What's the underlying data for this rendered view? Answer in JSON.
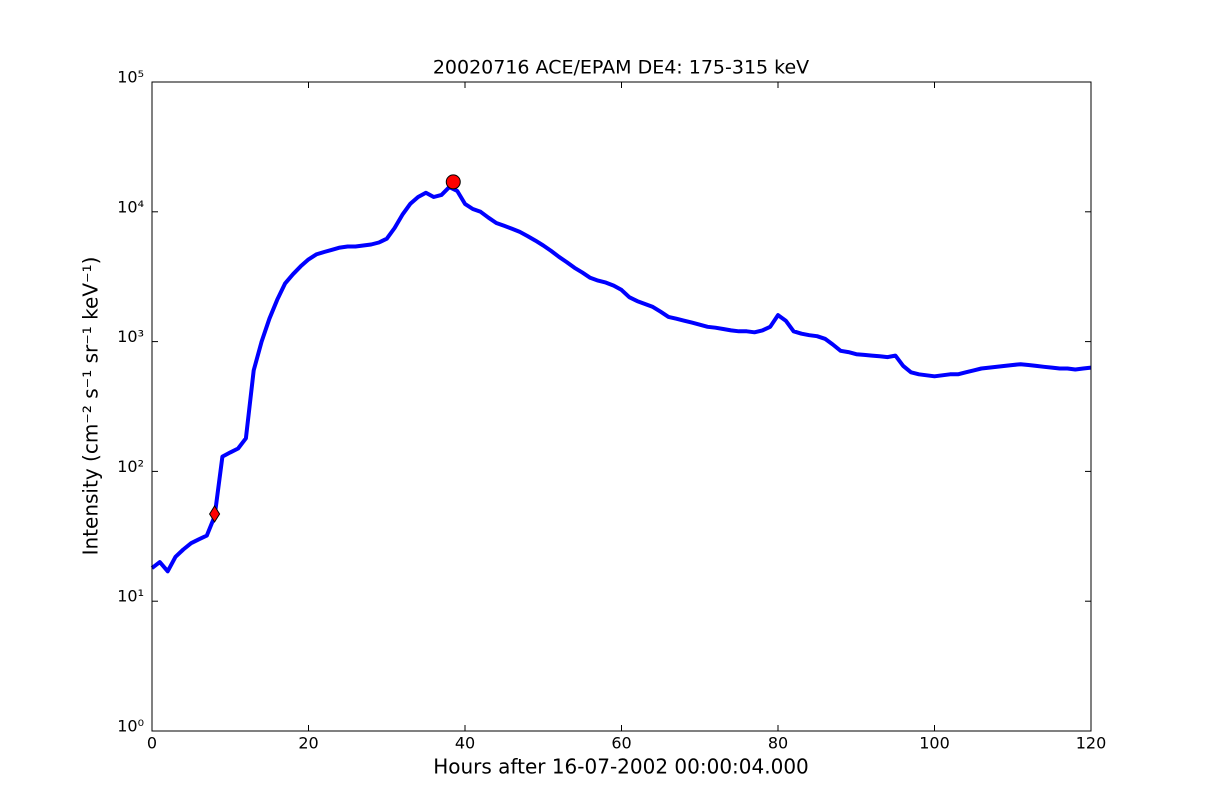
{
  "chart_data": {
    "type": "line",
    "title": "20020716 ACE/EPAM DE4: 175-315 keV",
    "xlabel": "Hours after 16-07-2002 00:00:04.000",
    "ylabel": "Intensity (cm⁻² s⁻¹ sr⁻¹ keV⁻¹)",
    "log_y": true,
    "xlim": [
      0,
      120
    ],
    "xticks": [
      0,
      20,
      40,
      60,
      80,
      100,
      120
    ],
    "ylim": [
      1,
      100000
    ],
    "yticks": [
      {
        "value": 1,
        "label": "10⁰"
      },
      {
        "value": 10,
        "label": "10¹"
      },
      {
        "value": 100,
        "label": "10²"
      },
      {
        "value": 1000,
        "label": "10³"
      },
      {
        "value": 10000,
        "label": "10⁴"
      },
      {
        "value": 100000,
        "label": "10⁵"
      }
    ],
    "x": [
      0,
      1,
      2,
      3,
      4,
      5,
      6,
      7,
      8,
      9,
      10,
      11,
      12,
      13,
      14,
      15,
      16,
      17,
      18,
      19,
      20,
      21,
      22,
      23,
      24,
      25,
      26,
      27,
      28,
      29,
      30,
      31,
      32,
      33,
      34,
      35,
      36,
      37,
      38,
      39,
      40,
      41,
      42,
      43,
      44,
      45,
      46,
      47,
      48,
      49,
      50,
      51,
      52,
      53,
      54,
      55,
      56,
      57,
      58,
      59,
      60,
      61,
      62,
      63,
      64,
      65,
      66,
      67,
      68,
      69,
      70,
      71,
      72,
      73,
      74,
      75,
      76,
      77,
      78,
      79,
      80,
      81,
      82,
      83,
      84,
      85,
      86,
      87,
      88,
      89,
      90,
      91,
      92,
      93,
      94,
      95,
      96,
      97,
      98,
      99,
      100,
      101,
      102,
      103,
      104,
      105,
      106,
      107,
      108,
      109,
      110,
      111,
      112,
      113,
      114,
      115,
      116,
      117,
      118,
      119,
      120
    ],
    "series": [
      {
        "color": "#0000ff",
        "values": [
          18,
          20,
          17,
          22,
          25,
          28,
          30,
          32,
          45,
          130,
          140,
          150,
          180,
          600,
          1000,
          1500,
          2100,
          2800,
          3300,
          3800,
          4300,
          4700,
          4900,
          5100,
          5300,
          5400,
          5400,
          5500,
          5600,
          5800,
          6200,
          7500,
          9500,
          11500,
          13000,
          14000,
          13000,
          13500,
          15500,
          14500,
          11500,
          10500,
          10000,
          9000,
          8200,
          7800,
          7400,
          7000,
          6500,
          6000,
          5500,
          5000,
          4500,
          4100,
          3700,
          3400,
          3100,
          2950,
          2850,
          2700,
          2500,
          2200,
          2050,
          1950,
          1850,
          1700,
          1550,
          1500,
          1450,
          1400,
          1350,
          1300,
          1280,
          1250,
          1220,
          1200,
          1200,
          1180,
          1220,
          1300,
          1600,
          1450,
          1200,
          1150,
          1120,
          1100,
          1050,
          950,
          850,
          830,
          800,
          790,
          780,
          770,
          760,
          780,
          650,
          580,
          560,
          550,
          540,
          550,
          560,
          560,
          580,
          600,
          620,
          630,
          640,
          650,
          660,
          670,
          660,
          650,
          640,
          630,
          620,
          620,
          610,
          620,
          630
        ]
      }
    ],
    "markers": [
      {
        "shape": "diamond",
        "color": "#ff0000",
        "x": 8,
        "y": 47
      },
      {
        "shape": "circle",
        "color": "#ff0000",
        "x": 38.5,
        "y": 17000
      }
    ]
  }
}
